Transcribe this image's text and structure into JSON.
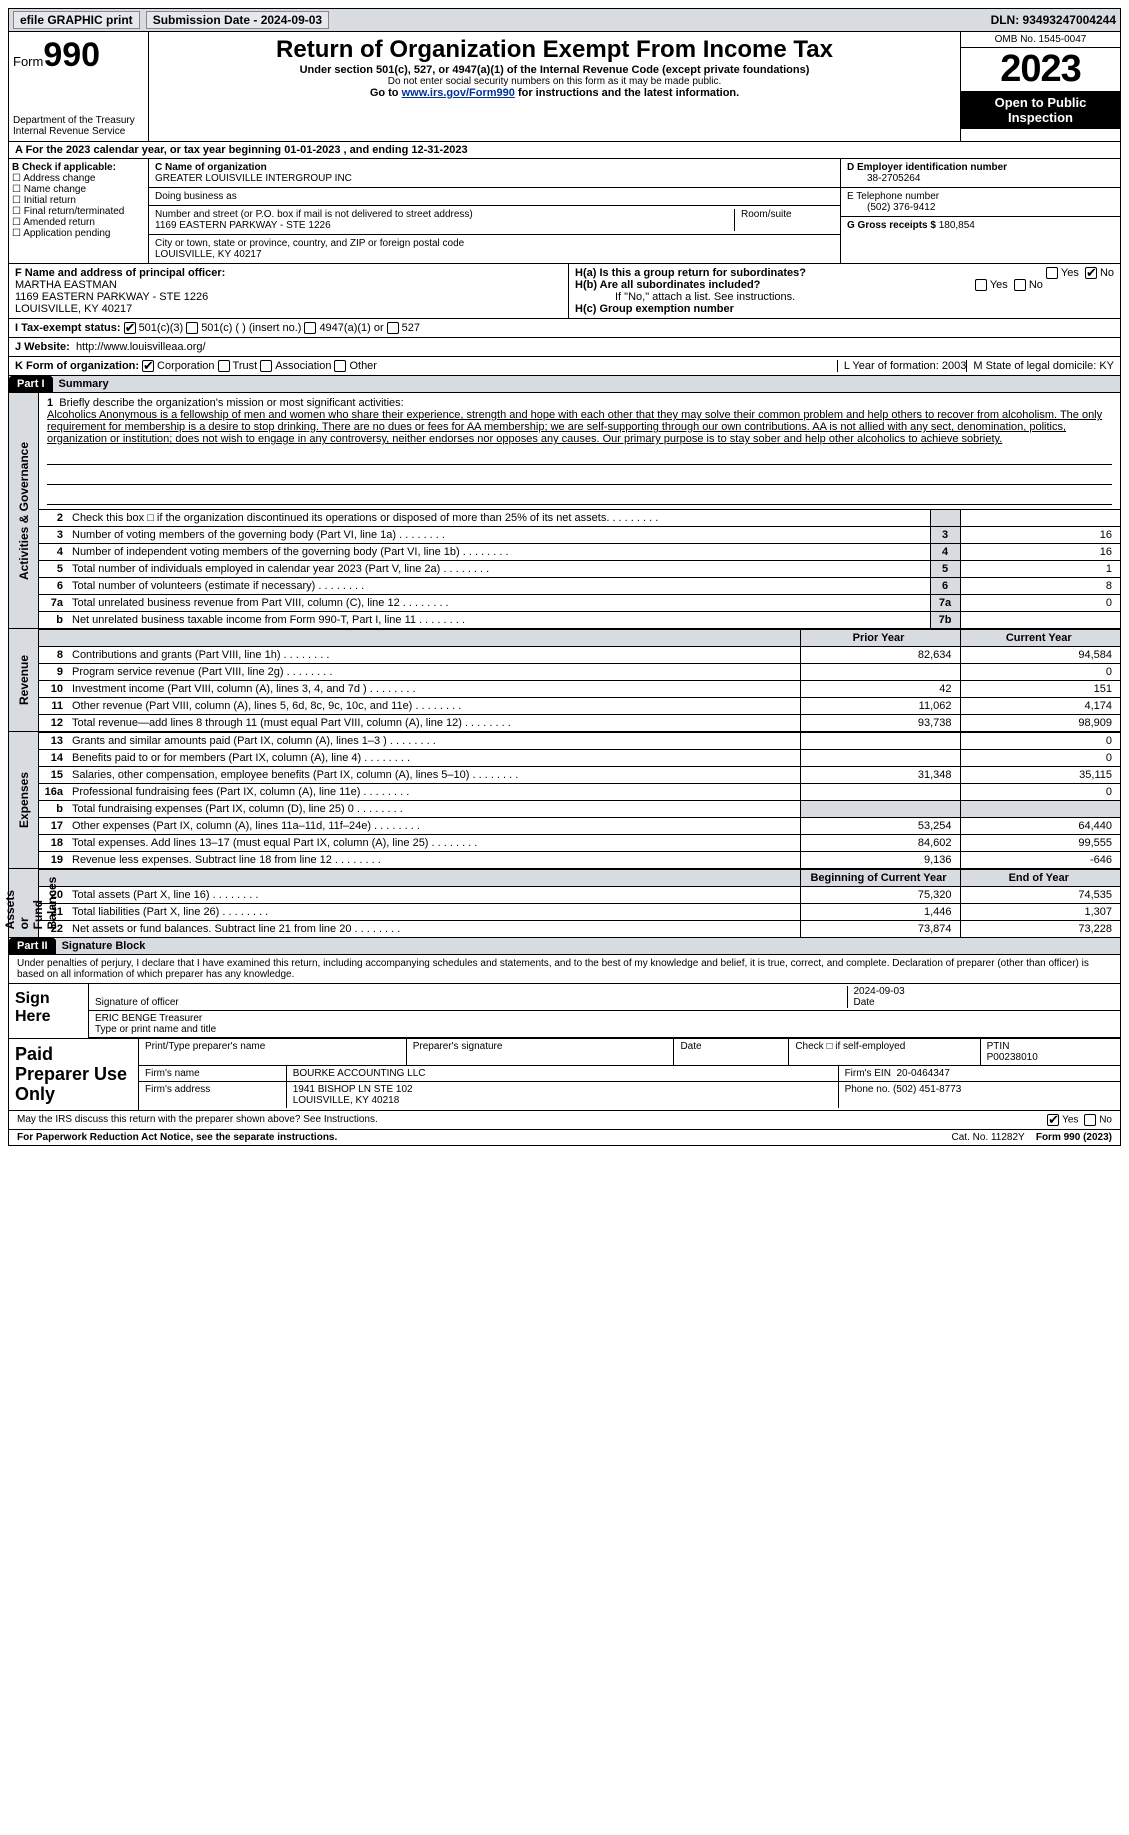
{
  "topbar": {
    "efile": "efile GRAPHIC print",
    "submission_label": "Submission Date - 2024-09-03",
    "dln": "DLN: 93493247004244"
  },
  "header": {
    "form_label": "Form",
    "form_num": "990",
    "dept": "Department of the Treasury\nInternal Revenue Service",
    "title": "Return of Organization Exempt From Income Tax",
    "subtitle": "Under section 501(c), 527, or 4947(a)(1) of the Internal Revenue Code (except private foundations)",
    "ssn_note": "Do not enter social security numbers on this form as it may be made public.",
    "goto_pre": "Go to ",
    "goto_link": "www.irs.gov/Form990",
    "goto_post": " for instructions and the latest information.",
    "omb": "OMB No. 1545-0047",
    "year": "2023",
    "open": "Open to Public Inspection"
  },
  "calyear": "A For the 2023 calendar year, or tax year beginning 01-01-2023  , and ending 12-31-2023",
  "boxB": {
    "label": "B Check if applicable:",
    "items": [
      "Address change",
      "Name change",
      "Initial return",
      "Final return/terminated",
      "Amended return",
      "Application pending"
    ]
  },
  "boxC": {
    "name_label": "C Name of organization",
    "name": "GREATER LOUISVILLE INTERGROUP INC",
    "dba_label": "Doing business as",
    "street_label": "Number and street (or P.O. box if mail is not delivered to street address)",
    "room_label": "Room/suite",
    "street": "1169 EASTERN PARKWAY - STE 1226",
    "city_label": "City or town, state or province, country, and ZIP or foreign postal code",
    "city": "LOUISVILLE, KY  40217"
  },
  "boxD": {
    "label": "D Employer identification number",
    "value": "38-2705264"
  },
  "boxE": {
    "label": "E Telephone number",
    "value": "(502) 376-9412"
  },
  "boxG": {
    "label": "G Gross receipts $",
    "value": "180,854"
  },
  "boxF": {
    "label": "F  Name and address of principal officer:",
    "name": "MARTHA EASTMAN",
    "addr1": "1169 EASTERN PARKWAY - STE 1226",
    "addr2": "LOUISVILLE, KY  40217"
  },
  "boxH": {
    "a": "H(a)  Is this a group return for subordinates?",
    "b": "H(b)  Are all subordinates included?",
    "b_note": "If \"No,\" attach a list. See instructions.",
    "c": "H(c)  Group exemption number",
    "yes": "Yes",
    "no": "No"
  },
  "status": {
    "label": "I   Tax-exempt status:",
    "opts": [
      "501(c)(3)",
      "501(c) (  ) (insert no.)",
      "4947(a)(1) or",
      "527"
    ]
  },
  "website": {
    "label": "J   Website:",
    "url": "http://www.louisvilleaa.org/"
  },
  "korg": {
    "label": "K Form of organization:",
    "opts": [
      "Corporation",
      "Trust",
      "Association",
      "Other"
    ],
    "L": "L Year of formation: 2003",
    "M": "M State of legal domicile: KY"
  },
  "part1": {
    "tag": "Part I",
    "title": "Summary"
  },
  "mission": {
    "num": "1",
    "label": "Briefly describe the organization's mission or most significant activities:",
    "text": "Alcoholics Anonymous is a fellowship of men and women who share their experience, strength and hope with each other that they may solve their common problem and help others to recover from alcoholism. The only requirement for membership is a desire to stop drinking. There are no dues or fees for AA membership; we are self-supporting through our own contributions. AA is not allied with any sect, denomination, politics, organization or institution; does not wish to engage in any controversy, neither endorses nor opposes any causes. Our primary purpose is to stay sober and help other alcoholics to achieve sobriety."
  },
  "gov_lines": [
    {
      "n": "2",
      "t": "Check this box  □  if the organization discontinued its operations or disposed of more than 25% of its net assets.",
      "nc": "",
      "v": ""
    },
    {
      "n": "3",
      "t": "Number of voting members of the governing body (Part VI, line 1a)",
      "nc": "3",
      "v": "16"
    },
    {
      "n": "4",
      "t": "Number of independent voting members of the governing body (Part VI, line 1b)",
      "nc": "4",
      "v": "16"
    },
    {
      "n": "5",
      "t": "Total number of individuals employed in calendar year 2023 (Part V, line 2a)",
      "nc": "5",
      "v": "1"
    },
    {
      "n": "6",
      "t": "Total number of volunteers (estimate if necessary)",
      "nc": "6",
      "v": "8"
    },
    {
      "n": "7a",
      "t": "Total unrelated business revenue from Part VIII, column (C), line 12",
      "nc": "7a",
      "v": "0"
    },
    {
      "n": "b",
      "t": "Net unrelated business taxable income from Form 990-T, Part I, line 11",
      "nc": "7b",
      "v": ""
    }
  ],
  "rev_head": {
    "py": "Prior Year",
    "cy": "Current Year"
  },
  "rev_lines": [
    {
      "n": "8",
      "t": "Contributions and grants (Part VIII, line 1h)",
      "py": "82,634",
      "cy": "94,584"
    },
    {
      "n": "9",
      "t": "Program service revenue (Part VIII, line 2g)",
      "py": "",
      "cy": "0"
    },
    {
      "n": "10",
      "t": "Investment income (Part VIII, column (A), lines 3, 4, and 7d )",
      "py": "42",
      "cy": "151"
    },
    {
      "n": "11",
      "t": "Other revenue (Part VIII, column (A), lines 5, 6d, 8c, 9c, 10c, and 11e)",
      "py": "11,062",
      "cy": "4,174"
    },
    {
      "n": "12",
      "t": "Total revenue—add lines 8 through 11 (must equal Part VIII, column (A), line 12)",
      "py": "93,738",
      "cy": "98,909"
    }
  ],
  "exp_lines": [
    {
      "n": "13",
      "t": "Grants and similar amounts paid (Part IX, column (A), lines 1–3 )",
      "py": "",
      "cy": "0"
    },
    {
      "n": "14",
      "t": "Benefits paid to or for members (Part IX, column (A), line 4)",
      "py": "",
      "cy": "0"
    },
    {
      "n": "15",
      "t": "Salaries, other compensation, employee benefits (Part IX, column (A), lines 5–10)",
      "py": "31,348",
      "cy": "35,115"
    },
    {
      "n": "16a",
      "t": "Professional fundraising fees (Part IX, column (A), line 11e)",
      "py": "",
      "cy": "0"
    },
    {
      "n": "b",
      "t": "Total fundraising expenses (Part IX, column (D), line 25) 0",
      "py": "grey",
      "cy": "grey"
    },
    {
      "n": "17",
      "t": "Other expenses (Part IX, column (A), lines 11a–11d, 11f–24e)",
      "py": "53,254",
      "cy": "64,440"
    },
    {
      "n": "18",
      "t": "Total expenses. Add lines 13–17 (must equal Part IX, column (A), line 25)",
      "py": "84,602",
      "cy": "99,555"
    },
    {
      "n": "19",
      "t": "Revenue less expenses. Subtract line 18 from line 12",
      "py": "9,136",
      "cy": "-646"
    }
  ],
  "na_head": {
    "py": "Beginning of Current Year",
    "cy": "End of Year"
  },
  "na_lines": [
    {
      "n": "20",
      "t": "Total assets (Part X, line 16)",
      "py": "75,320",
      "cy": "74,535"
    },
    {
      "n": "21",
      "t": "Total liabilities (Part X, line 26)",
      "py": "1,446",
      "cy": "1,307"
    },
    {
      "n": "22",
      "t": "Net assets or fund balances. Subtract line 21 from line 20",
      "py": "73,874",
      "cy": "73,228"
    }
  ],
  "side_labels": {
    "gov": "Activities & Governance",
    "rev": "Revenue",
    "exp": "Expenses",
    "na": "Net Assets or\nFund Balances"
  },
  "part2": {
    "tag": "Part II",
    "title": "Signature Block"
  },
  "sig": {
    "intro": "Under penalties of perjury, I declare that I have examined this return, including accompanying schedules and statements, and to the best of my knowledge and belief, it is true, correct, and complete. Declaration of preparer (other than officer) is based on all information of which preparer has any knowledge.",
    "sign_here": "Sign Here",
    "sig_officer": "Signature of officer",
    "date": "Date",
    "date_val": "2024-09-03",
    "officer": "ERIC BENGE  Treasurer",
    "officer_label": "Type or print name and title"
  },
  "paid": {
    "label": "Paid Preparer Use Only",
    "name_h": "Print/Type preparer's name",
    "sig_h": "Preparer's signature",
    "date_h": "Date",
    "check_h": "Check  □  if self-employed",
    "ptin_h": "PTIN",
    "ptin": "P00238010",
    "firm_name_h": "Firm's name",
    "firm_name": "BOURKE ACCOUNTING LLC",
    "firm_ein_h": "Firm's EIN",
    "firm_ein": "20-0464347",
    "firm_addr_h": "Firm's address",
    "firm_addr": "1941 BISHOP LN STE 102\nLOUISVILLE, KY  40218",
    "phone_h": "Phone no.",
    "phone": "(502) 451-8773"
  },
  "discuss": "May the IRS discuss this return with the preparer shown above? See Instructions.",
  "footer": {
    "left": "For Paperwork Reduction Act Notice, see the separate instructions.",
    "mid": "Cat. No. 11282Y",
    "right": "Form 990 (2023)"
  }
}
